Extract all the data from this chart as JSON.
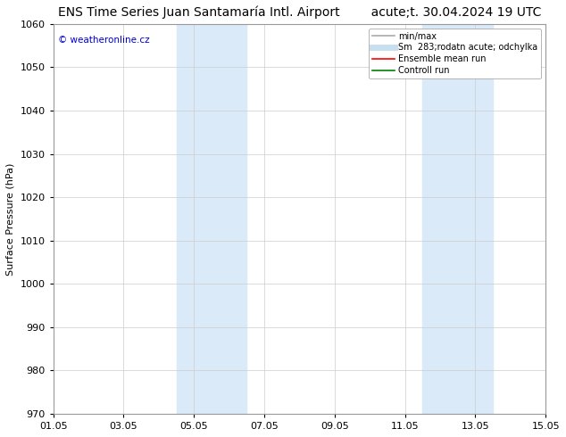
{
  "title": "ENS Time Series Juan Santamaría Intl. Airport        acute;t. 30.04.2024 19 UTC",
  "ylabel": "Surface Pressure (hPa)",
  "xlabel_ticks": [
    "01.05",
    "03.05",
    "05.05",
    "07.05",
    "09.05",
    "11.05",
    "13.05",
    "15.05"
  ],
  "xlim": [
    0,
    14
  ],
  "ylim": [
    970,
    1060
  ],
  "yticks": [
    970,
    980,
    990,
    1000,
    1010,
    1020,
    1030,
    1040,
    1050,
    1060
  ],
  "shaded_bands": [
    {
      "x_start": 3.5,
      "x_end": 5.5,
      "color": "#daeaf8"
    },
    {
      "x_start": 10.5,
      "x_end": 12.5,
      "color": "#daeaf8"
    }
  ],
  "watermark": "© weatheronline.cz",
  "watermark_color": "#0000cc",
  "legend_entries": [
    {
      "label": "min/max",
      "color": "#aaaaaa",
      "lw": 1.2,
      "style": "-"
    },
    {
      "label": "Sm  283;rodatn acute; odchylka",
      "color": "#c8dff0",
      "lw": 5,
      "style": "-"
    },
    {
      "label": "Ensemble mean run",
      "color": "red",
      "lw": 1.2,
      "style": "-"
    },
    {
      "label": "Controll run",
      "color": "green",
      "lw": 1.2,
      "style": "-"
    }
  ],
  "background_color": "#ffffff",
  "grid_color": "#cccccc",
  "title_fontsize": 10,
  "axis_fontsize": 8,
  "tick_fontsize": 8,
  "legend_fontsize": 7
}
